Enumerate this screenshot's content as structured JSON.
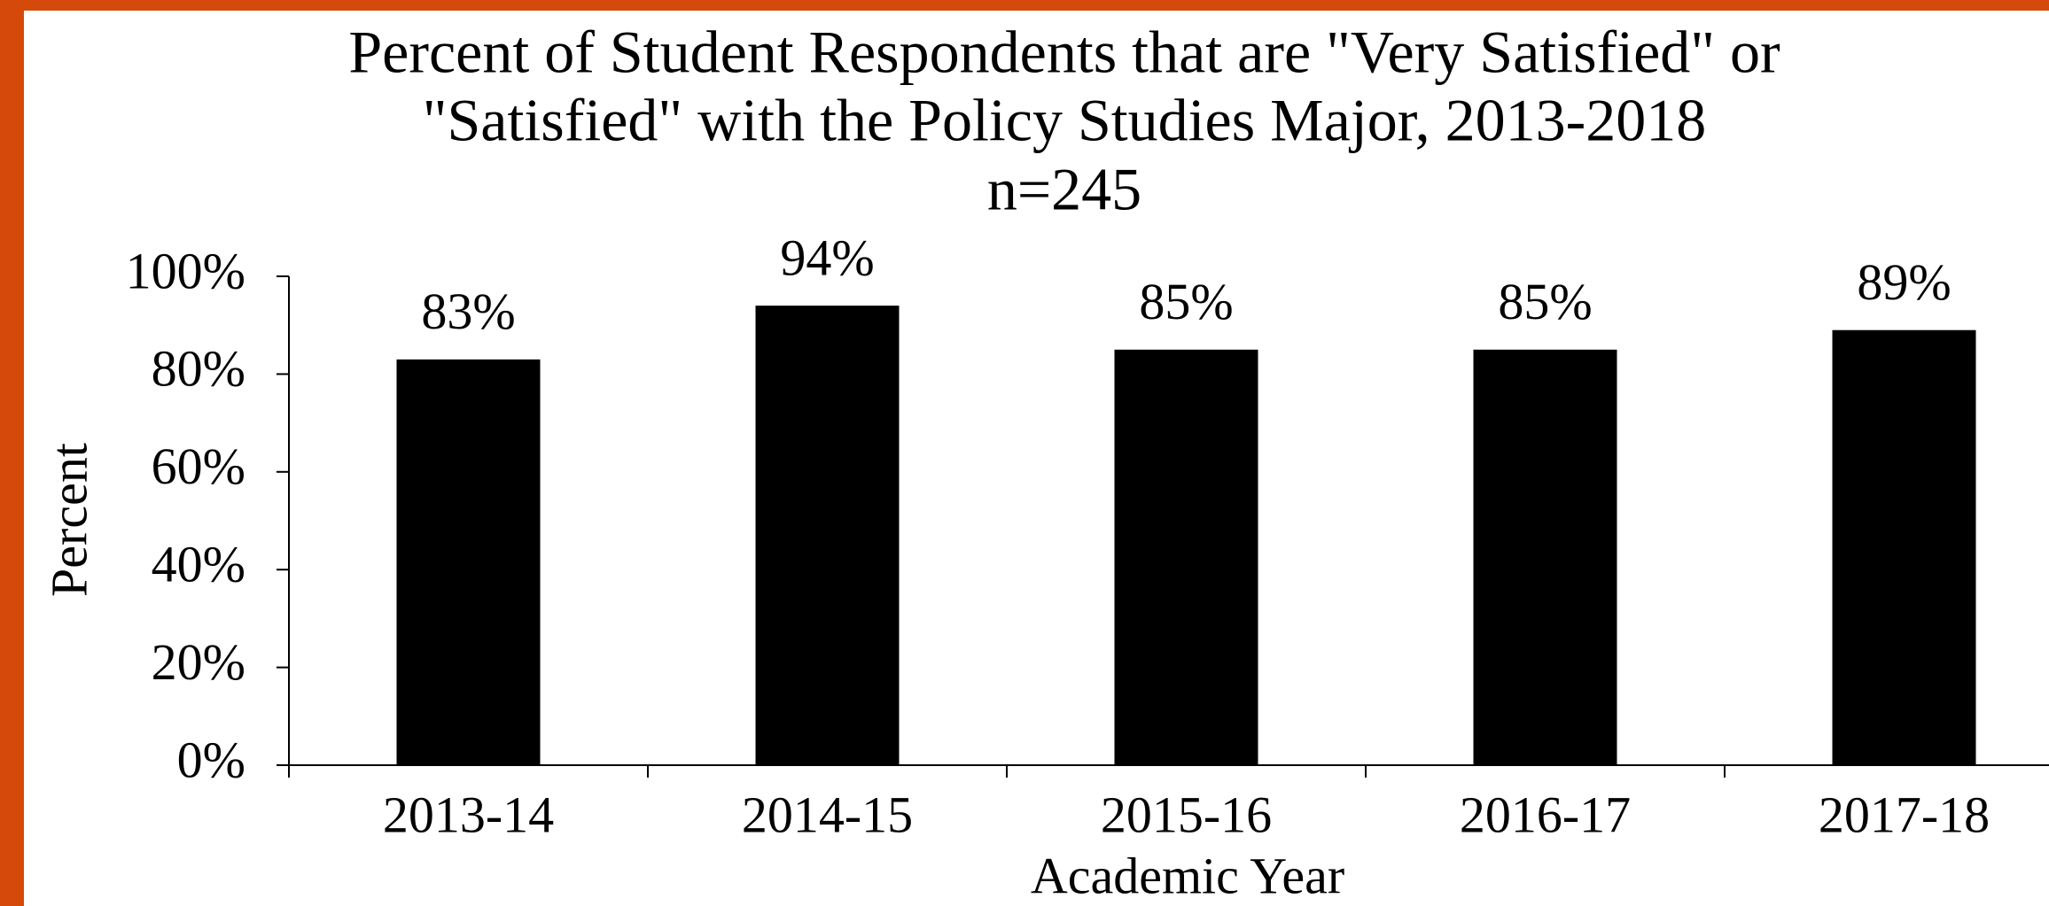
{
  "chart_data": {
    "type": "bar",
    "title": [
      "Percent of Student Respondents that are \"Very Satisfied\" or",
      "\"Satisfied\" with the Policy Studies Major, 2013-2018"
    ],
    "subtitle": "n=245",
    "x_label": "Academic Year",
    "y_label": "Percent",
    "categories": [
      "2013-14",
      "2014-15",
      "2015-16",
      "2016-17",
      "2017-18"
    ],
    "values": [
      83,
      94,
      85,
      85,
      89
    ],
    "value_labels": [
      "83%",
      "94%",
      "85%",
      "85%",
      "89%"
    ],
    "color": "#000000",
    "ylim": [
      0,
      100
    ],
    "yticks": [
      {
        "value": 0,
        "label": "0%"
      },
      {
        "value": 20,
        "label": "20%"
      },
      {
        "value": 40,
        "label": "40%"
      },
      {
        "value": 60,
        "label": "60%"
      },
      {
        "value": 80,
        "label": "80%"
      },
      {
        "value": 100,
        "label": "100%"
      }
    ],
    "grid": false
  }
}
